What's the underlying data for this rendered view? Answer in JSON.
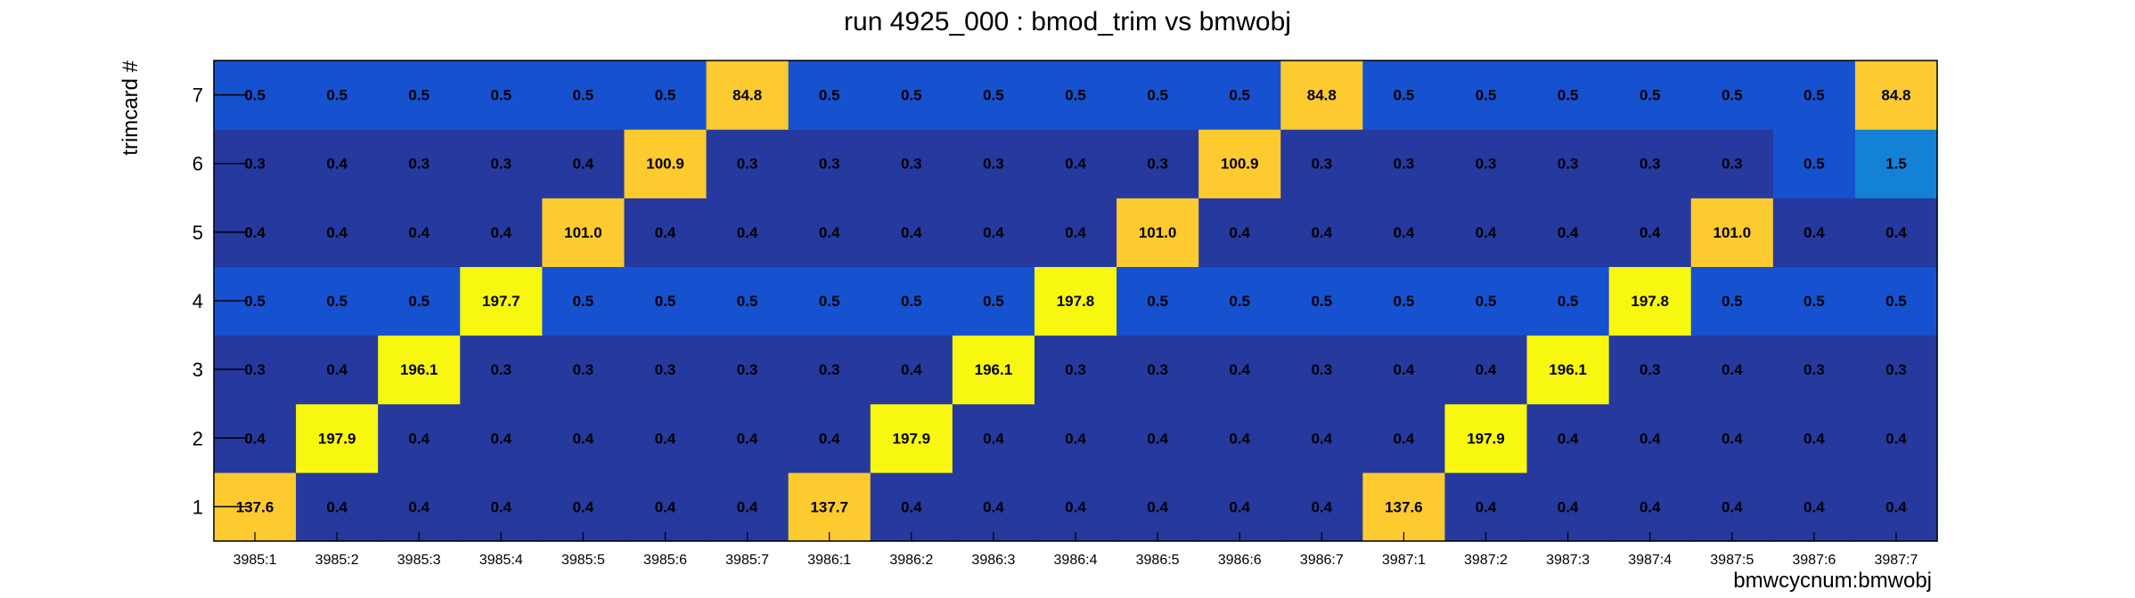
{
  "chart_data": {
    "type": "heatmap",
    "title": "run 4925_000 : bmod_trim vs bmwobj",
    "xlabel": "bmwcycnum:bmwobj",
    "ylabel": "trimcard #",
    "x_categories": [
      "3985:1",
      "3985:2",
      "3985:3",
      "3985:4",
      "3985:5",
      "3985:6",
      "3985:7",
      "3986:1",
      "3986:2",
      "3986:3",
      "3986:4",
      "3986:5",
      "3986:6",
      "3986:7",
      "3987:1",
      "3987:2",
      "3987:3",
      "3987:4",
      "3987:5",
      "3987:6",
      "3987:7"
    ],
    "y_categories": [
      "1",
      "2",
      "3",
      "4",
      "5",
      "6",
      "7"
    ],
    "values": [
      [
        137.6,
        0.4,
        0.4,
        0.4,
        0.4,
        0.4,
        0.4,
        137.7,
        0.4,
        0.4,
        0.4,
        0.4,
        0.4,
        0.4,
        137.6,
        0.4,
        0.4,
        0.4,
        0.4,
        0.4,
        0.4
      ],
      [
        0.4,
        197.9,
        0.4,
        0.4,
        0.4,
        0.4,
        0.4,
        0.4,
        197.9,
        0.4,
        0.4,
        0.4,
        0.4,
        0.4,
        0.4,
        197.9,
        0.4,
        0.4,
        0.4,
        0.4,
        0.4
      ],
      [
        0.3,
        0.4,
        196.1,
        0.3,
        0.3,
        0.3,
        0.3,
        0.3,
        0.4,
        196.1,
        0.3,
        0.3,
        0.4,
        0.3,
        0.4,
        0.4,
        196.1,
        0.3,
        0.4,
        0.3,
        0.3
      ],
      [
        0.5,
        0.5,
        0.5,
        197.7,
        0.5,
        0.5,
        0.5,
        0.5,
        0.5,
        0.5,
        197.8,
        0.5,
        0.5,
        0.5,
        0.5,
        0.5,
        0.5,
        197.8,
        0.5,
        0.5,
        0.5
      ],
      [
        0.4,
        0.4,
        0.4,
        0.4,
        101.0,
        0.4,
        0.4,
        0.4,
        0.4,
        0.4,
        0.4,
        101.0,
        0.4,
        0.4,
        0.4,
        0.4,
        0.4,
        0.4,
        101.0,
        0.4,
        0.4
      ],
      [
        0.3,
        0.4,
        0.3,
        0.3,
        0.4,
        100.9,
        0.3,
        0.3,
        0.3,
        0.3,
        0.4,
        0.3,
        100.9,
        0.3,
        0.3,
        0.3,
        0.3,
        0.3,
        0.3,
        0.5,
        1.5
      ],
      [
        0.5,
        0.5,
        0.5,
        0.5,
        0.5,
        0.5,
        84.8,
        0.5,
        0.5,
        0.5,
        0.5,
        0.5,
        0.5,
        84.8,
        0.5,
        0.5,
        0.5,
        0.5,
        0.5,
        0.5,
        84.8
      ]
    ],
    "colors": {
      "low": "#25399e",
      "mid_low": "#1651cf",
      "mid": "#1281d6",
      "high_orange": "#fdca2f",
      "high_yellow": "#f7f70f"
    },
    "grid": false,
    "legend": "none"
  }
}
